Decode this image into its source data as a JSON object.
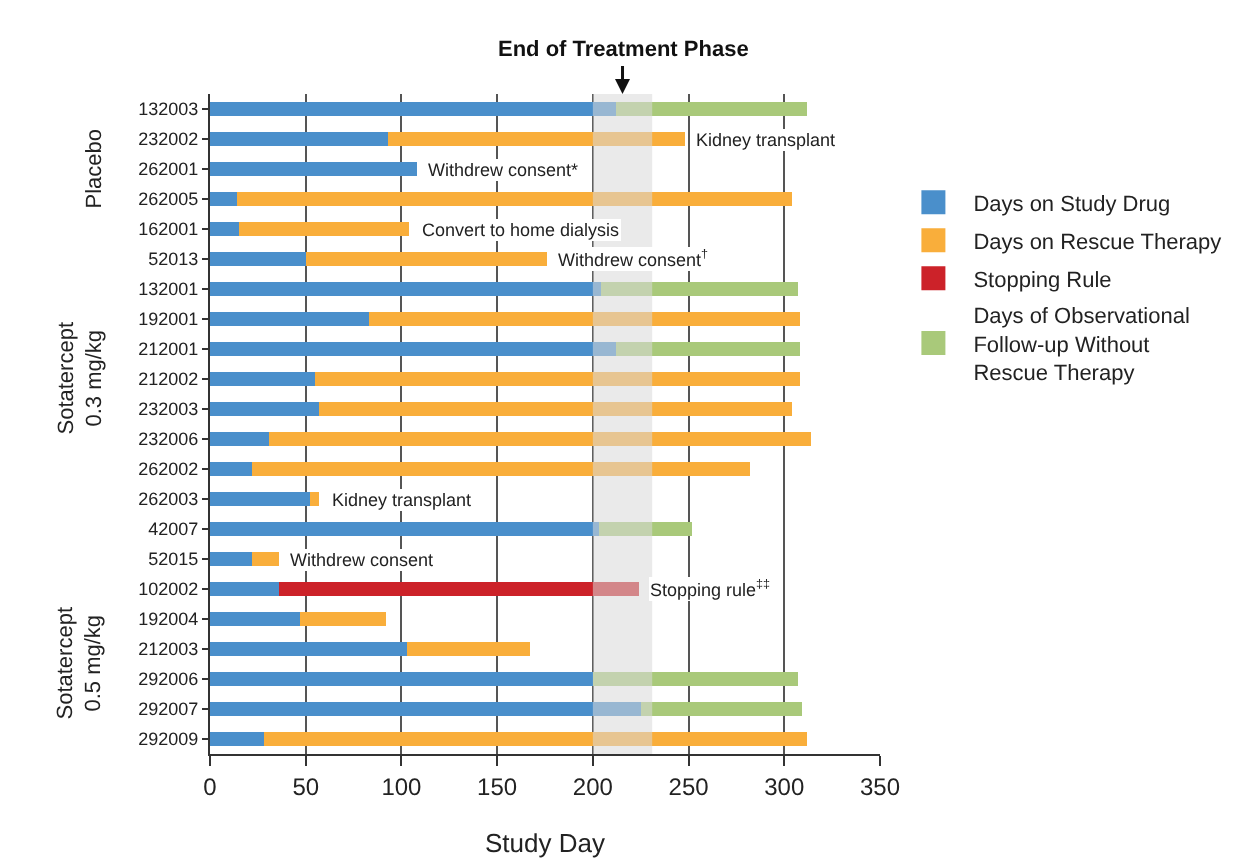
{
  "chart_data": {
    "type": "bar",
    "orientation": "horizontal",
    "stacked": true,
    "xlabel": "Study Day",
    "categories": [
      "132003",
      "232002",
      "262001",
      "262005",
      "162001",
      "52013",
      "132001",
      "192001",
      "212001",
      "212002",
      "232003",
      "232006",
      "262002",
      "262003",
      "42007",
      "52015",
      "102002",
      "192004",
      "212003",
      "292006",
      "292007",
      "292009"
    ],
    "series": [
      {
        "name": "Days on Study Drug",
        "color": "#4a8fcb",
        "values": [
          212,
          93,
          108,
          14,
          15,
          50,
          204,
          83,
          212,
          55,
          57,
          31,
          22,
          52,
          203,
          22,
          36,
          47,
          103,
          200,
          225,
          28
        ]
      },
      {
        "name": "Days on Rescue Therapy",
        "color": "#f9ae3b",
        "values": [
          null,
          155,
          null,
          290,
          89,
          126,
          null,
          225,
          null,
          253,
          247,
          283,
          260,
          5,
          null,
          14,
          null,
          45,
          64,
          null,
          null,
          284
        ]
      },
      {
        "name": "Stopping Rule",
        "color": "#cc2229",
        "values": [
          null,
          null,
          null,
          null,
          null,
          null,
          null,
          null,
          null,
          null,
          null,
          null,
          null,
          null,
          null,
          null,
          188,
          null,
          null,
          null,
          null,
          null
        ]
      },
      {
        "name": "Days of Observational Follow-up Without Rescue Therapy",
        "color": "#a9c97a",
        "values": [
          100,
          null,
          null,
          null,
          null,
          null,
          103,
          null,
          96,
          null,
          null,
          null,
          null,
          null,
          49,
          null,
          null,
          null,
          null,
          107,
          84,
          null
        ]
      }
    ],
    "xlim": [
      0,
      350
    ],
    "xticks": [
      0,
      50,
      100,
      150,
      200,
      250,
      300,
      350
    ],
    "grid": "x",
    "legend": "right",
    "bands": [
      {
        "axis": "x",
        "from": 200,
        "to": 231,
        "label": "End of Treatment Phase",
        "color": "#d9d9d9"
      }
    ],
    "annotations": [
      "Placebo",
      "Sotatercept 0.3 mg/kg",
      "Sotatercept 0.5 mg/kg",
      {
        "text": "Kidney transplant",
        "x": 248,
        "y": "232002"
      },
      {
        "text": "Withdrew consent*",
        "x": 108,
        "y": "262001"
      },
      {
        "text": "Convert to home dialysis",
        "x": 104,
        "y": "162001"
      },
      {
        "text": "Withdrew consent$^{†}$",
        "x": 176,
        "y": "52013"
      },
      {
        "text": "Kidney transplant",
        "x": 57,
        "y": "262003"
      },
      {
        "text": "Withdrew consent",
        "x": 36,
        "y": "52015"
      },
      {
        "text": "Stopping rule$^{‡‡}$",
        "x": 224,
        "y": "102002"
      }
    ]
  }
}
